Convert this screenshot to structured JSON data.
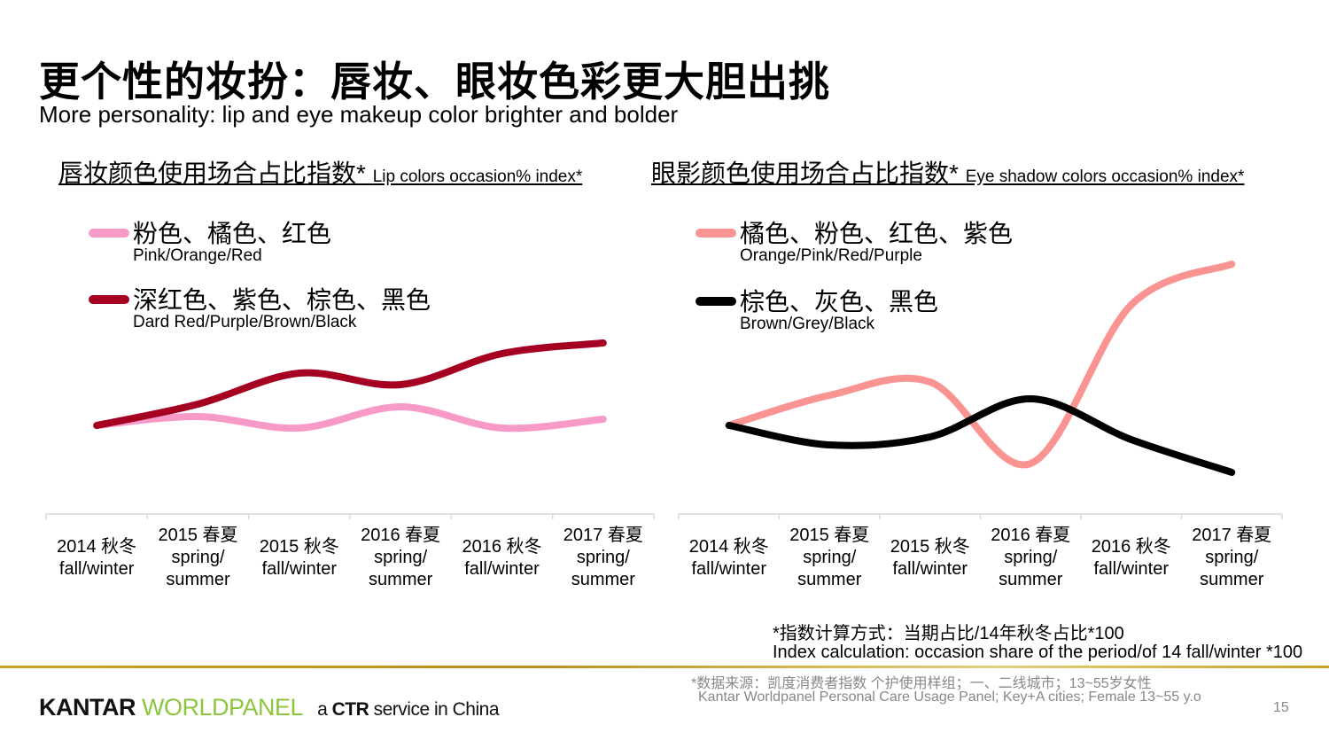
{
  "title": "更个性的妆扮：唇妆、眼妆色彩更大胆出挑",
  "subtitle": "More personality: lip and eye makeup color brighter and bolder",
  "chart_data": [
    {
      "type": "line",
      "title_zh": "唇妆颜色使用场合占比指数*",
      "title_en": "Lip colors occasion% index*",
      "categories": [
        {
          "zh": "2014 秋冬",
          "en": "fall/winter"
        },
        {
          "zh": "2015 春夏",
          "en": "spring/ summer"
        },
        {
          "zh": "2015 秋冬",
          "en": "fall/winter"
        },
        {
          "zh": "2016 春夏",
          "en": "spring/ summer"
        },
        {
          "zh": "2016 秋冬",
          "en": "fall/winter"
        },
        {
          "zh": "2017 春夏",
          "en": "spring/ summer"
        }
      ],
      "ylim": [
        60,
        200
      ],
      "grid": false,
      "legend_placement": "top-left",
      "series": [
        {
          "name_zh": "粉色、橘色、红色",
          "name_en": "Pink/Orange/Red",
          "color": "#f79ac8",
          "values": [
            100,
            105,
            98.5,
            110.5,
            98.5,
            103.5
          ]
        },
        {
          "name_zh": "深红色、紫色、棕色、黑色",
          "name_en": "Dard Red/Purple/Brown/Black",
          "color": "#a50021",
          "values": [
            100,
            112,
            129.5,
            123,
            140.5,
            146.5
          ]
        }
      ]
    },
    {
      "type": "line",
      "title_zh": "眼影颜色使用场合占比指数*",
      "title_en": "Eye shadow colors occasion% index*",
      "categories": [
        {
          "zh": "2014 秋冬",
          "en": "fall/winter"
        },
        {
          "zh": "2015 春夏",
          "en": "spring/ summer"
        },
        {
          "zh": "2015 秋冬",
          "en": "fall/winter"
        },
        {
          "zh": "2016 春夏",
          "en": "spring/ summer"
        },
        {
          "zh": "2016 秋冬",
          "en": "fall/winter"
        },
        {
          "zh": "2017 春夏",
          "en": "spring/ summer"
        }
      ],
      "ylim": [
        60,
        200
      ],
      "grid": false,
      "legend_placement": "top-left",
      "series": [
        {
          "name_zh": "橘色、粉色、红色、紫色",
          "name_en": "Orange/Pink/Red/Purple",
          "color": "#fa9493",
          "values": [
            100,
            117,
            124.5,
            78.5,
            168,
            191
          ]
        },
        {
          "name_zh": "棕色、灰色、黑色",
          "name_en": "Brown/Grey/Black",
          "color": "#000000",
          "values": [
            100,
            89,
            93.5,
            115,
            92,
            73.5
          ]
        }
      ]
    }
  ],
  "notes": {
    "index_zh": "*指数计算方式：当期占比/14年秋冬占比*100",
    "index_en": "Index calculation: occasion share of the period/of 14 fall/winter *100",
    "source_zh": "*数据来源：凯度消费者指数 个护使用样组；一、二线城市；13~55岁女性",
    "source_en": "Kantar Worldpanel Personal Care Usage Panel; Key+A cities; Female 13~55 y.o"
  },
  "footer": {
    "logo_kantar": "KANTAR",
    "logo_worldpanel": "WORLDPANEL",
    "tagline_a": "a",
    "tagline_ctr": "CTR",
    "tagline_rest": "service in China",
    "page_number": "15"
  }
}
